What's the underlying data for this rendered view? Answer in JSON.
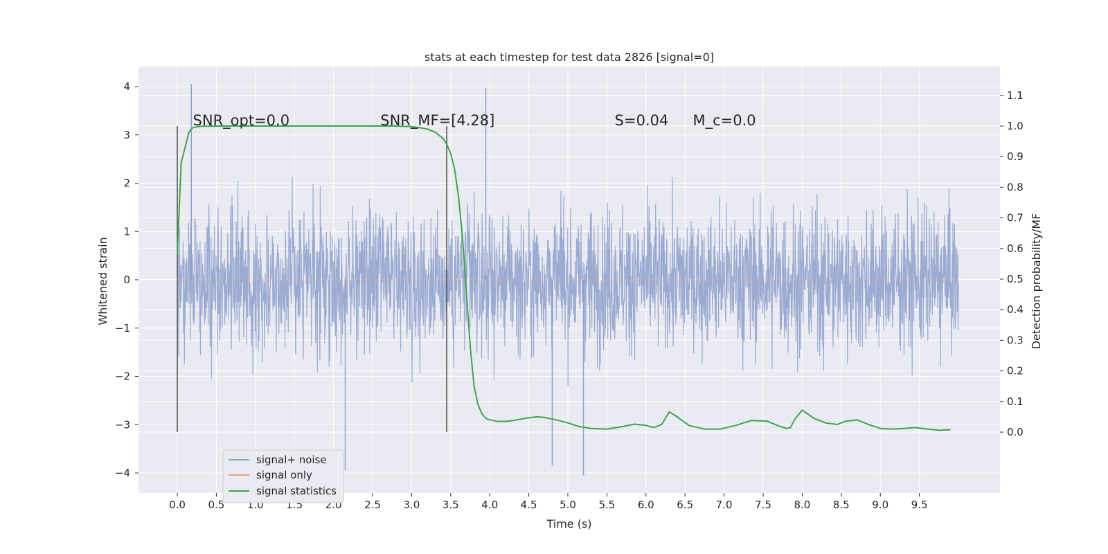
{
  "chart_data": {
    "type": "line",
    "title": "stats at each timestep for test data 2826 [signal=0]",
    "xlabel": "Time (s)",
    "ylabel": "Whitened strain",
    "y2label": "Detection probability/MF",
    "xlim": [
      -0.5,
      10.5
    ],
    "ylim": [
      -4.4,
      4.4
    ],
    "y2lim": [
      -0.2,
      1.19
    ],
    "x_ticks": [
      "0.0",
      "0.5",
      "1.0",
      "1.5",
      "2.0",
      "2.5",
      "3.0",
      "3.5",
      "4.0",
      "4.5",
      "5.0",
      "5.5",
      "6.0",
      "6.5",
      "7.0",
      "7.5",
      "8.0",
      "8.5",
      "9.0",
      "9.5"
    ],
    "y_ticks": [
      "4",
      "3",
      "2",
      "1",
      "0",
      "−1",
      "−2",
      "−3",
      "−4"
    ],
    "y2_ticks": [
      "1.1",
      "1.0",
      "0.9",
      "0.8",
      "0.7",
      "0.6",
      "0.5",
      "0.4",
      "0.3",
      "0.2",
      "0.1",
      "0.0"
    ],
    "grid": true,
    "annotations": [
      {
        "text": "SNR_opt=0.0",
        "x": 0.2,
        "y2": 1.0
      },
      {
        "text": "SNR_MF=[4.28]",
        "x": 2.6,
        "y2": 1.0
      },
      {
        "text": "S=0.04",
        "x": 5.6,
        "y2": 1.0
      },
      {
        "text": "M_c=0.0",
        "x": 6.6,
        "y2": 1.0
      }
    ],
    "vlines": [
      0.0,
      3.45
    ],
    "legend": {
      "placement": "lower-left",
      "entries": [
        {
          "label": "signal+ noise",
          "color": "#8da0cb"
        },
        {
          "label": "signal only",
          "color": "#e8a07f"
        },
        {
          "label": "signal statistics",
          "color": "#3fa34d"
        }
      ]
    },
    "series": [
      {
        "name": "signal+ noise",
        "color": "#8da0cb",
        "t_range": [
          0.0,
          10.0
        ],
        "envelope_typical": [
          -1.8,
          1.8
        ],
        "extremes": [
          {
            "x": 0.18,
            "y": 4.05
          },
          {
            "x": 3.95,
            "y": 3.97
          },
          {
            "x": 2.15,
            "y": -3.95
          },
          {
            "x": 5.2,
            "y": -4.05
          },
          {
            "x": 4.8,
            "y": -3.85
          }
        ]
      },
      {
        "name": "signal only",
        "color": "#e8a07f",
        "x": [
          0.0,
          10.0
        ],
        "y": [
          0.0,
          0.0
        ]
      },
      {
        "name": "signal statistics",
        "color": "#3fa34d",
        "axis": "y2",
        "x": [
          0.0,
          0.05,
          0.1,
          0.15,
          0.2,
          0.3,
          0.5,
          1.0,
          2.0,
          2.5,
          2.8,
          3.0,
          3.1,
          3.2,
          3.3,
          3.4,
          3.45,
          3.5,
          3.55,
          3.6,
          3.65,
          3.7,
          3.75,
          3.8,
          3.85,
          3.9,
          3.95,
          4.0,
          4.1,
          4.2,
          4.3,
          4.45,
          4.6,
          4.7,
          4.85,
          5.0,
          5.15,
          5.3,
          5.5,
          5.7,
          5.85,
          6.0,
          6.1,
          6.2,
          6.3,
          6.4,
          6.55,
          6.75,
          6.95,
          7.15,
          7.35,
          7.55,
          7.7,
          7.8,
          7.85,
          7.9,
          8.0,
          8.15,
          8.3,
          8.45,
          8.55,
          8.7,
          8.85,
          9.0,
          9.15,
          9.3,
          9.45,
          9.6,
          9.75,
          9.9
        ],
        "y": [
          0.58,
          0.88,
          0.93,
          0.98,
          0.995,
          0.999,
          1.0,
          1.0,
          1.0,
          1.0,
          1.0,
          0.998,
          0.995,
          0.99,
          0.98,
          0.96,
          0.94,
          0.91,
          0.86,
          0.77,
          0.64,
          0.46,
          0.28,
          0.15,
          0.09,
          0.06,
          0.045,
          0.04,
          0.035,
          0.035,
          0.038,
          0.045,
          0.05,
          0.048,
          0.04,
          0.03,
          0.018,
          0.012,
          0.01,
          0.018,
          0.026,
          0.022,
          0.015,
          0.025,
          0.066,
          0.05,
          0.022,
          0.01,
          0.01,
          0.022,
          0.038,
          0.036,
          0.02,
          0.012,
          0.015,
          0.04,
          0.072,
          0.045,
          0.03,
          0.025,
          0.035,
          0.04,
          0.025,
          0.012,
          0.01,
          0.012,
          0.015,
          0.01,
          0.006,
          0.008
        ]
      }
    ]
  }
}
